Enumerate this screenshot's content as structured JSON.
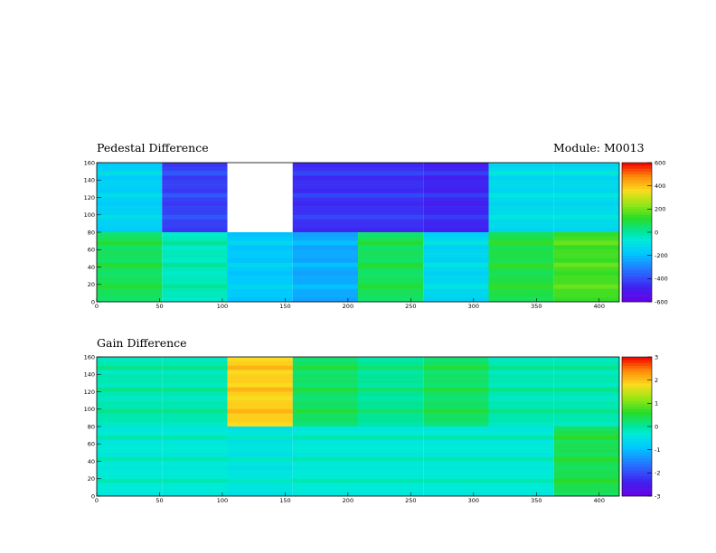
{
  "module_label": "Module: M0013",
  "chart_data": [
    {
      "type": "heatmap",
      "title": "Pedestal Difference",
      "xlim": [
        0,
        416
      ],
      "ylim": [
        0,
        160
      ],
      "xticks": [
        "0",
        "50",
        "100",
        "150",
        "200",
        "250",
        "300",
        "350",
        "400"
      ],
      "xtick_values": [
        0,
        50,
        100,
        150,
        200,
        250,
        300,
        350,
        400
      ],
      "yticks": [
        "0",
        "20",
        "40",
        "60",
        "80",
        "100",
        "120",
        "140",
        "160"
      ],
      "ytick_values": [
        0,
        20,
        40,
        60,
        80,
        100,
        120,
        140,
        160
      ],
      "colorbar": {
        "min": -600,
        "max": 600,
        "tick_labels": [
          "-600",
          "-400",
          "-200",
          "0",
          "200",
          "400",
          "600"
        ],
        "tick_values": [
          -600,
          -400,
          -200,
          0,
          200,
          400,
          600
        ]
      },
      "blocks": [
        {
          "x": [
            0,
            52
          ],
          "y": [
            80,
            160
          ],
          "value": -150
        },
        {
          "x": [
            52,
            104
          ],
          "y": [
            80,
            160
          ],
          "value": -420
        },
        {
          "x": [
            104,
            156
          ],
          "y": [
            80,
            160
          ],
          "value": null
        },
        {
          "x": [
            156,
            208
          ],
          "y": [
            80,
            160
          ],
          "value": -450
        },
        {
          "x": [
            208,
            260
          ],
          "y": [
            80,
            160
          ],
          "value": -450
        },
        {
          "x": [
            260,
            312
          ],
          "y": [
            80,
            160
          ],
          "value": -470
        },
        {
          "x": [
            312,
            364
          ],
          "y": [
            80,
            160
          ],
          "value": -120
        },
        {
          "x": [
            364,
            416
          ],
          "y": [
            80,
            160
          ],
          "value": -120
        },
        {
          "x": [
            0,
            52
          ],
          "y": [
            0,
            80
          ],
          "value": 70
        },
        {
          "x": [
            52,
            104
          ],
          "y": [
            0,
            80
          ],
          "value": -30
        },
        {
          "x": [
            104,
            156
          ],
          "y": [
            0,
            80
          ],
          "value": -170
        },
        {
          "x": [
            156,
            208
          ],
          "y": [
            0,
            80
          ],
          "value": -230
        },
        {
          "x": [
            208,
            260
          ],
          "y": [
            0,
            80
          ],
          "value": 70
        },
        {
          "x": [
            260,
            312
          ],
          "y": [
            0,
            80
          ],
          "value": -130
        },
        {
          "x": [
            312,
            364
          ],
          "y": [
            0,
            80
          ],
          "value": 90
        },
        {
          "x": [
            364,
            416
          ],
          "y": [
            0,
            80
          ],
          "value": 150
        }
      ]
    },
    {
      "type": "heatmap",
      "title": "Gain Difference",
      "xlim": [
        0,
        416
      ],
      "ylim": [
        0,
        160
      ],
      "xticks": [
        "0",
        "50",
        "100",
        "150",
        "200",
        "250",
        "300",
        "350",
        "400"
      ],
      "xtick_values": [
        0,
        50,
        100,
        150,
        200,
        250,
        300,
        350,
        400
      ],
      "yticks": [
        "0",
        "20",
        "40",
        "60",
        "80",
        "100",
        "120",
        "140",
        "160"
      ],
      "ytick_values": [
        0,
        20,
        40,
        60,
        80,
        100,
        120,
        140,
        160
      ],
      "colorbar": {
        "min": -3,
        "max": 3,
        "tick_labels": [
          "-3",
          "-2",
          "-1",
          "0",
          "1",
          "2",
          "3"
        ],
        "tick_values": [
          -3,
          -2,
          -1,
          0,
          1,
          2,
          3
        ]
      },
      "blocks": [
        {
          "x": [
            0,
            52
          ],
          "y": [
            80,
            160
          ],
          "value": -0.1
        },
        {
          "x": [
            52,
            104
          ],
          "y": [
            80,
            160
          ],
          "value": -0.1
        },
        {
          "x": [
            104,
            156
          ],
          "y": [
            80,
            160
          ],
          "value": 1.9
        },
        {
          "x": [
            156,
            208
          ],
          "y": [
            80,
            160
          ],
          "value": 0.3
        },
        {
          "x": [
            208,
            260
          ],
          "y": [
            80,
            160
          ],
          "value": 0.05
        },
        {
          "x": [
            260,
            312
          ],
          "y": [
            80,
            160
          ],
          "value": 0.3
        },
        {
          "x": [
            312,
            364
          ],
          "y": [
            80,
            160
          ],
          "value": -0.1
        },
        {
          "x": [
            364,
            416
          ],
          "y": [
            80,
            160
          ],
          "value": -0.1
        },
        {
          "x": [
            0,
            52
          ],
          "y": [
            0,
            80
          ],
          "value": -0.3
        },
        {
          "x": [
            52,
            104
          ],
          "y": [
            0,
            80
          ],
          "value": -0.3
        },
        {
          "x": [
            104,
            156
          ],
          "y": [
            0,
            80
          ],
          "value": -0.4
        },
        {
          "x": [
            156,
            208
          ],
          "y": [
            0,
            80
          ],
          "value": -0.3
        },
        {
          "x": [
            208,
            260
          ],
          "y": [
            0,
            80
          ],
          "value": -0.3
        },
        {
          "x": [
            260,
            312
          ],
          "y": [
            0,
            80
          ],
          "value": -0.3
        },
        {
          "x": [
            312,
            364
          ],
          "y": [
            0,
            80
          ],
          "value": -0.3
        },
        {
          "x": [
            364,
            416
          ],
          "y": [
            0,
            80
          ],
          "value": 0.4
        }
      ]
    }
  ]
}
